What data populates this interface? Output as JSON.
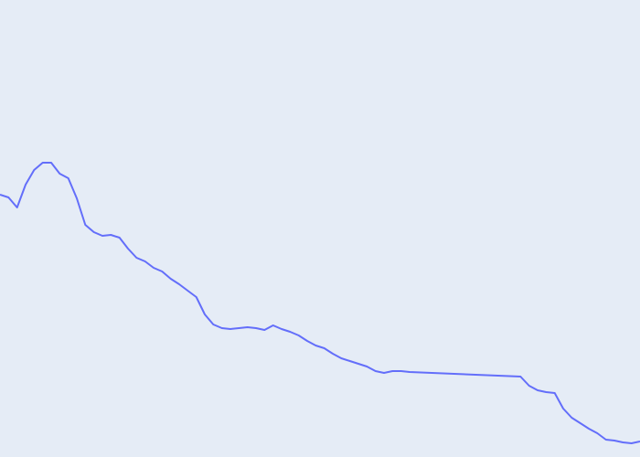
{
  "chart_data": {
    "type": "line",
    "title": "",
    "xlabel": "",
    "ylabel": "",
    "grid": false,
    "legend": "none",
    "colors": {
      "plot_background": "#e5ecf6",
      "line": "#636efa"
    },
    "x_axis": {
      "ticks_shown": false,
      "xlim": [
        0,
        75
      ]
    },
    "y_axis": {
      "ticks_shown": false,
      "ylim": [
        0,
        100
      ]
    },
    "series": [
      {
        "x": [
          0,
          1,
          2,
          3,
          4,
          5,
          6,
          7,
          8,
          9,
          10,
          11,
          12,
          13,
          14,
          15,
          16,
          17,
          18,
          19,
          20,
          21,
          22,
          23,
          24,
          25,
          26,
          27,
          28,
          29,
          30,
          31,
          32,
          33,
          34,
          35,
          36,
          37,
          38,
          39,
          40,
          41,
          42,
          43,
          44,
          45,
          46,
          47,
          48,
          61,
          62,
          63,
          64,
          65,
          66,
          67,
          68,
          69,
          70,
          71,
          72,
          73,
          74,
          75
        ],
        "y": [
          57.4,
          56.8,
          54.6,
          59.6,
          62.8,
          64.4,
          64.4,
          62,
          61.0,
          56.6,
          50.8,
          49.2,
          48.4,
          48.6,
          48.0,
          45.6,
          43.6,
          42.8,
          41.4,
          40.6,
          39.0,
          37.8,
          36.4,
          35.0,
          31.2,
          29.0,
          28.2,
          28.0,
          28.2,
          28.4,
          28.2,
          27.8,
          28.8,
          28.0,
          27.4,
          26.6,
          25.4,
          24.4,
          23.8,
          22.6,
          21.6,
          21.0,
          20.4,
          19.8,
          18.8,
          18.4,
          18.8,
          18.8,
          18.6,
          17.6,
          15.6,
          14.6,
          14.2,
          14.0,
          10.6,
          8.6,
          7.4,
          6.2,
          5.2,
          3.8,
          3.6,
          3.2,
          3.0,
          3.4
        ]
      }
    ]
  }
}
